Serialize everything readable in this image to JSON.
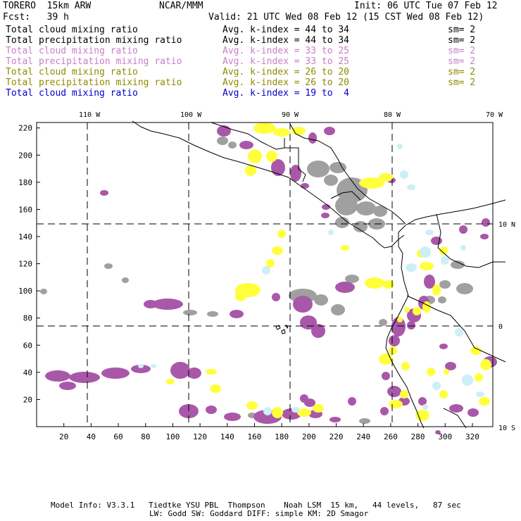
{
  "header": {
    "model": "TORERO  15km ARW",
    "org": "NCAR/MMM",
    "init": "Init: 06 UTC Tue 07 Feb 12",
    "fcst": "Fcst:   39 h",
    "valid": "Valid: 21 UTC Wed 08 Feb 12 (15 CST Wed 08 Feb 12)"
  },
  "legend": [
    {
      "field": "Total cloud mixing ratio",
      "range": "Avg. k-index = 44 to 34",
      "sm": "sm= 2",
      "color": "#000000"
    },
    {
      "field": "Total precipitation mixing ratio",
      "range": "Avg. k-index = 44 to 34",
      "sm": "sm= 2",
      "color": "#000000"
    },
    {
      "field": "Total cloud mixing ratio",
      "range": "Avg. k-index = 33 to 25",
      "sm": "sm= 2",
      "color": "#c87ec8"
    },
    {
      "field": "Total precipitation mixing ratio",
      "range": "Avg. k-index = 33 to 25",
      "sm": "sm= 2",
      "color": "#c87ec8"
    },
    {
      "field": "Total cloud mixing ratio",
      "range": "Avg. k-index = 26 to 20",
      "sm": "sm= 2",
      "color": "#8c8c00"
    },
    {
      "field": "Total precipitation mixing ratio",
      "range": "Avg. k-index = 26 to 20",
      "sm": "sm= 2",
      "color": "#8c8c00"
    },
    {
      "field": "Total cloud mixing ratio",
      "range": "Avg. k-index = 19 to  4",
      "sm": "",
      "color": "#0000cc"
    }
  ],
  "map": {
    "lon_labels": [
      "110 W",
      "100 W",
      "90 W",
      "80 W",
      "70 W"
    ],
    "lat_labels": [
      "10 N",
      "0",
      "10 S"
    ],
    "x_ticks": [
      20,
      40,
      60,
      80,
      100,
      120,
      140,
      160,
      180,
      200,
      220,
      240,
      260,
      280,
      300,
      320
    ],
    "y_ticks": [
      20,
      40,
      60,
      80,
      100,
      120,
      140,
      160,
      180,
      200,
      220
    ],
    "x_range": [
      0,
      335
    ],
    "y_range": [
      0,
      224
    ],
    "colors": {
      "gray": "#a0a0a0",
      "purple": "#a958a9",
      "yellow": "#ffff3c",
      "cyan": "#cdeff7",
      "coast": "#000000",
      "grid": "#000000"
    }
  },
  "footer": {
    "line1": "Model Info: V3.3.1   Tiedtke YSU PBL  Thompson    Noah LSM  15 km,   44 levels,   87 sec",
    "line2": "LW: Godd SW: Goddard DIFF: simple KM: 2D Smagor"
  }
}
